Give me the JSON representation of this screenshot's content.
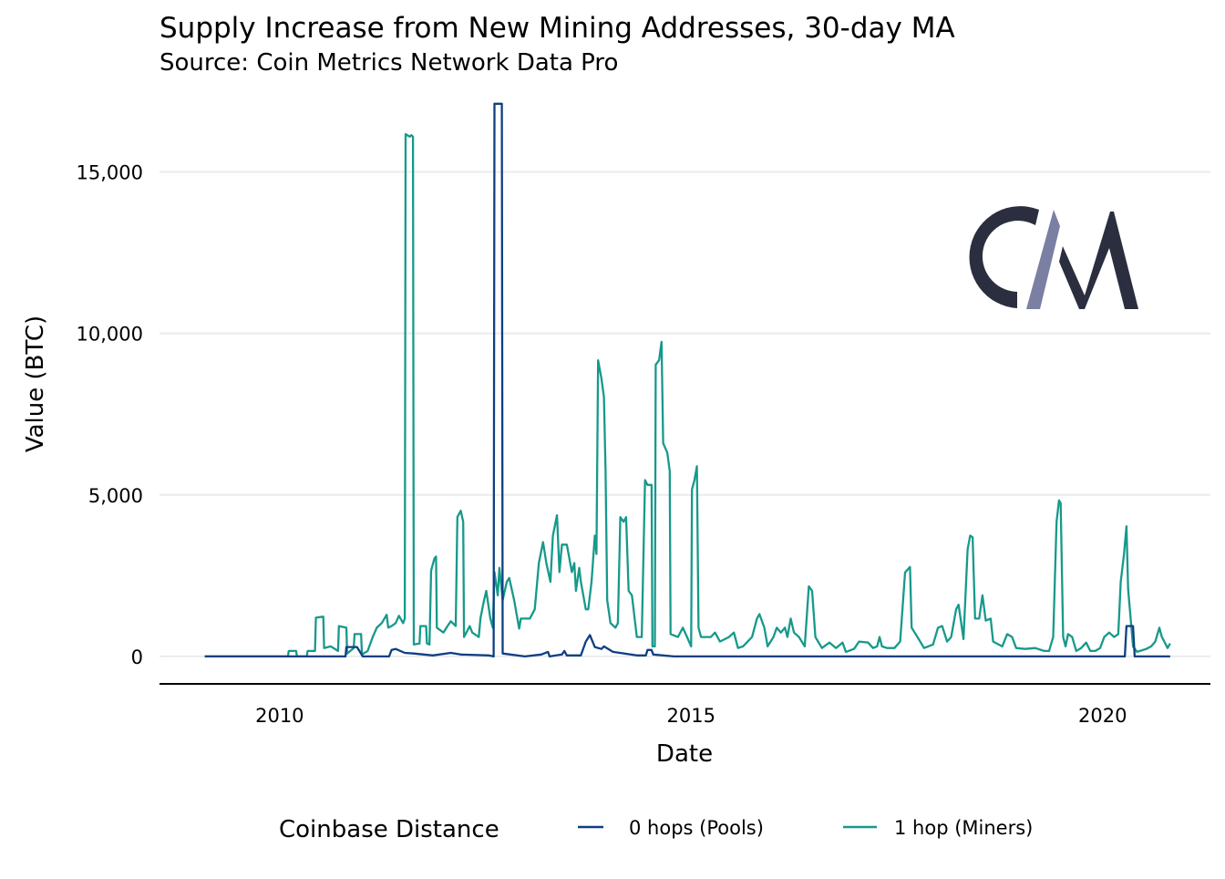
{
  "colors": {
    "pools": "#0e3f82",
    "miners": "#17998b",
    "grid": "#ebebeb",
    "logo_dark": "#2a2e3f",
    "logo_slash": "#7a7fa3"
  },
  "logo": {
    "text": "CM"
  },
  "chart_data": {
    "type": "line",
    "title": "Supply Increase from New Mining Addresses, 30-day MA",
    "subtitle": "Source: Coin Metrics Network Data Pro",
    "xlabel": "Date",
    "ylabel": "Value (BTC)",
    "xlim": [
      2008.54,
      2021.31
    ],
    "ylim": [
      -850,
      17500
    ],
    "x_ticks": [
      2010,
      2015,
      2020
    ],
    "x_tick_labels": [
      "2010",
      "2015",
      "2020"
    ],
    "y_ticks": [
      0,
      5000,
      10000,
      15000
    ],
    "y_tick_labels": [
      "0",
      "5,000",
      "10,000",
      "15,000"
    ],
    "grid": "horizontal",
    "legend": {
      "title": "Coinbase Distance",
      "position": "bottom",
      "entries": [
        "0 hops (Pools)",
        "1 hop (Miners)"
      ]
    },
    "series": [
      {
        "name": "0 hops (Pools)",
        "color_key": "pools",
        "points": [
          [
            2009.09,
            0
          ],
          [
            2010.8,
            0
          ],
          [
            2010.81,
            290
          ],
          [
            2010.94,
            290
          ],
          [
            2011.01,
            0
          ],
          [
            2011.33,
            0
          ],
          [
            2011.36,
            200
          ],
          [
            2011.41,
            230
          ],
          [
            2011.52,
            110
          ],
          [
            2011.63,
            90
          ],
          [
            2011.86,
            30
          ],
          [
            2012.08,
            110
          ],
          [
            2012.2,
            60
          ],
          [
            2012.54,
            30
          ],
          [
            2012.6,
            0
          ],
          [
            2012.61,
            17110
          ],
          [
            2012.7,
            17110
          ],
          [
            2012.71,
            90
          ],
          [
            2012.98,
            0
          ],
          [
            2013.18,
            60
          ],
          [
            2013.26,
            140
          ],
          [
            2013.28,
            0
          ],
          [
            2013.43,
            60
          ],
          [
            2013.46,
            170
          ],
          [
            2013.49,
            30
          ],
          [
            2013.66,
            30
          ],
          [
            2013.72,
            460
          ],
          [
            2013.77,
            660
          ],
          [
            2013.83,
            290
          ],
          [
            2013.91,
            230
          ],
          [
            2013.94,
            310
          ],
          [
            2014.05,
            140
          ],
          [
            2014.34,
            30
          ],
          [
            2014.45,
            30
          ],
          [
            2014.47,
            200
          ],
          [
            2014.52,
            200
          ],
          [
            2014.54,
            60
          ],
          [
            2014.79,
            0
          ],
          [
            2020.27,
            0
          ],
          [
            2020.29,
            940
          ],
          [
            2020.37,
            940
          ],
          [
            2020.39,
            0
          ],
          [
            2020.82,
            0
          ]
        ]
      },
      {
        "name": "1 hop (Miners)",
        "color_key": "miners",
        "points": [
          [
            2009.09,
            0
          ],
          [
            2010.1,
            0
          ],
          [
            2010.11,
            170
          ],
          [
            2010.2,
            170
          ],
          [
            2010.21,
            0
          ],
          [
            2010.33,
            0
          ],
          [
            2010.34,
            170
          ],
          [
            2010.43,
            170
          ],
          [
            2010.44,
            1200
          ],
          [
            2010.53,
            1230
          ],
          [
            2010.54,
            260
          ],
          [
            2010.62,
            310
          ],
          [
            2010.71,
            170
          ],
          [
            2010.72,
            940
          ],
          [
            2010.81,
            890
          ],
          [
            2010.82,
            90
          ],
          [
            2010.9,
            260
          ],
          [
            2010.91,
            690
          ],
          [
            2010.99,
            690
          ],
          [
            2011.0,
            60
          ],
          [
            2011.07,
            170
          ],
          [
            2011.13,
            600
          ],
          [
            2011.18,
            890
          ],
          [
            2011.24,
            1030
          ],
          [
            2011.3,
            1290
          ],
          [
            2011.32,
            890
          ],
          [
            2011.36,
            940
          ],
          [
            2011.41,
            1030
          ],
          [
            2011.45,
            1260
          ],
          [
            2011.5,
            1030
          ],
          [
            2011.52,
            1170
          ],
          [
            2011.53,
            16170
          ],
          [
            2011.58,
            16090
          ],
          [
            2011.6,
            16140
          ],
          [
            2011.62,
            16090
          ],
          [
            2011.63,
            370
          ],
          [
            2011.7,
            400
          ],
          [
            2011.71,
            940
          ],
          [
            2011.78,
            940
          ],
          [
            2011.79,
            400
          ],
          [
            2011.82,
            370
          ],
          [
            2011.84,
            2660
          ],
          [
            2011.88,
            3030
          ],
          [
            2011.9,
            3090
          ],
          [
            2011.91,
            890
          ],
          [
            2011.99,
            740
          ],
          [
            2012.04,
            940
          ],
          [
            2012.08,
            1090
          ],
          [
            2012.14,
            940
          ],
          [
            2012.16,
            4310
          ],
          [
            2012.2,
            4510
          ],
          [
            2012.23,
            4170
          ],
          [
            2012.24,
            600
          ],
          [
            2012.31,
            940
          ],
          [
            2012.34,
            740
          ],
          [
            2012.42,
            600
          ],
          [
            2012.44,
            1170
          ],
          [
            2012.48,
            1690
          ],
          [
            2012.51,
            2030
          ],
          [
            2012.56,
            1170
          ],
          [
            2012.59,
            890
          ],
          [
            2012.61,
            2610
          ],
          [
            2012.65,
            1890
          ],
          [
            2012.67,
            2740
          ],
          [
            2012.71,
            1740
          ],
          [
            2012.76,
            2310
          ],
          [
            2012.79,
            2430
          ],
          [
            2012.85,
            1740
          ],
          [
            2012.91,
            860
          ],
          [
            2012.93,
            1170
          ],
          [
            2013.04,
            1170
          ],
          [
            2013.1,
            1460
          ],
          [
            2013.15,
            2890
          ],
          [
            2013.2,
            3540
          ],
          [
            2013.24,
            2890
          ],
          [
            2013.29,
            2310
          ],
          [
            2013.32,
            3740
          ],
          [
            2013.37,
            4370
          ],
          [
            2013.4,
            2610
          ],
          [
            2013.43,
            3460
          ],
          [
            2013.49,
            3460
          ],
          [
            2013.55,
            2610
          ],
          [
            2013.58,
            2890
          ],
          [
            2013.6,
            2030
          ],
          [
            2013.64,
            2740
          ],
          [
            2013.66,
            2310
          ],
          [
            2013.72,
            1460
          ],
          [
            2013.75,
            1460
          ],
          [
            2013.79,
            2310
          ],
          [
            2013.83,
            3740
          ],
          [
            2013.85,
            3170
          ],
          [
            2013.87,
            9170
          ],
          [
            2013.91,
            8600
          ],
          [
            2013.94,
            8030
          ],
          [
            2013.96,
            5740
          ],
          [
            2013.98,
            1740
          ],
          [
            2014.02,
            1030
          ],
          [
            2014.08,
            890
          ],
          [
            2014.11,
            1030
          ],
          [
            2014.14,
            4310
          ],
          [
            2014.18,
            4170
          ],
          [
            2014.21,
            4310
          ],
          [
            2014.24,
            2030
          ],
          [
            2014.28,
            1890
          ],
          [
            2014.34,
            600
          ],
          [
            2014.4,
            600
          ],
          [
            2014.44,
            5460
          ],
          [
            2014.47,
            5310
          ],
          [
            2014.52,
            5310
          ],
          [
            2014.53,
            310
          ],
          [
            2014.56,
            310
          ],
          [
            2014.57,
            9030
          ],
          [
            2014.61,
            9170
          ],
          [
            2014.64,
            9740
          ],
          [
            2014.66,
            6600
          ],
          [
            2014.71,
            6310
          ],
          [
            2014.74,
            5740
          ],
          [
            2014.75,
            690
          ],
          [
            2014.84,
            600
          ],
          [
            2014.9,
            890
          ],
          [
            2014.95,
            600
          ],
          [
            2015.0,
            310
          ],
          [
            2015.01,
            5170
          ],
          [
            2015.04,
            5460
          ],
          [
            2015.07,
            5890
          ],
          [
            2015.09,
            890
          ],
          [
            2015.12,
            600
          ],
          [
            2015.24,
            600
          ],
          [
            2015.29,
            740
          ],
          [
            2015.35,
            460
          ],
          [
            2015.46,
            600
          ],
          [
            2015.52,
            740
          ],
          [
            2015.57,
            260
          ],
          [
            2015.63,
            310
          ],
          [
            2015.74,
            600
          ],
          [
            2015.8,
            1170
          ],
          [
            2015.83,
            1310
          ],
          [
            2015.89,
            890
          ],
          [
            2015.93,
            310
          ],
          [
            2016.0,
            600
          ],
          [
            2016.04,
            890
          ],
          [
            2016.09,
            740
          ],
          [
            2016.14,
            890
          ],
          [
            2016.17,
            600
          ],
          [
            2016.21,
            1170
          ],
          [
            2016.25,
            740
          ],
          [
            2016.31,
            600
          ],
          [
            2016.38,
            310
          ],
          [
            2016.43,
            2170
          ],
          [
            2016.47,
            2030
          ],
          [
            2016.51,
            600
          ],
          [
            2016.59,
            260
          ],
          [
            2016.68,
            430
          ],
          [
            2016.76,
            260
          ],
          [
            2016.84,
            430
          ],
          [
            2016.88,
            140
          ],
          [
            2016.98,
            230
          ],
          [
            2017.04,
            460
          ],
          [
            2017.15,
            430
          ],
          [
            2017.21,
            260
          ],
          [
            2017.26,
            310
          ],
          [
            2017.29,
            600
          ],
          [
            2017.32,
            310
          ],
          [
            2017.38,
            260
          ],
          [
            2017.47,
            260
          ],
          [
            2017.54,
            460
          ],
          [
            2017.6,
            2600
          ],
          [
            2017.66,
            2770
          ],
          [
            2017.68,
            890
          ],
          [
            2017.75,
            600
          ],
          [
            2017.83,
            260
          ],
          [
            2017.94,
            370
          ],
          [
            2018.0,
            890
          ],
          [
            2018.05,
            940
          ],
          [
            2018.11,
            460
          ],
          [
            2018.16,
            600
          ],
          [
            2018.22,
            1460
          ],
          [
            2018.25,
            1600
          ],
          [
            2018.31,
            540
          ],
          [
            2018.36,
            3310
          ],
          [
            2018.39,
            3740
          ],
          [
            2018.42,
            3690
          ],
          [
            2018.45,
            1170
          ],
          [
            2018.5,
            1170
          ],
          [
            2018.54,
            1890
          ],
          [
            2018.58,
            1110
          ],
          [
            2018.64,
            1170
          ],
          [
            2018.67,
            460
          ],
          [
            2018.78,
            310
          ],
          [
            2018.84,
            690
          ],
          [
            2018.9,
            600
          ],
          [
            2018.95,
            260
          ],
          [
            2019.06,
            230
          ],
          [
            2019.18,
            260
          ],
          [
            2019.29,
            170
          ],
          [
            2019.35,
            170
          ],
          [
            2019.4,
            600
          ],
          [
            2019.44,
            4170
          ],
          [
            2019.47,
            4830
          ],
          [
            2019.49,
            4740
          ],
          [
            2019.52,
            600
          ],
          [
            2019.55,
            310
          ],
          [
            2019.58,
            690
          ],
          [
            2019.63,
            600
          ],
          [
            2019.68,
            170
          ],
          [
            2019.74,
            260
          ],
          [
            2019.8,
            430
          ],
          [
            2019.85,
            170
          ],
          [
            2019.91,
            170
          ],
          [
            2019.97,
            260
          ],
          [
            2020.02,
            600
          ],
          [
            2020.08,
            740
          ],
          [
            2020.14,
            600
          ],
          [
            2020.19,
            690
          ],
          [
            2020.22,
            2310
          ],
          [
            2020.26,
            3170
          ],
          [
            2020.29,
            4030
          ],
          [
            2020.31,
            2090
          ],
          [
            2020.37,
            310
          ],
          [
            2020.42,
            140
          ],
          [
            2020.53,
            230
          ],
          [
            2020.59,
            310
          ],
          [
            2020.64,
            460
          ],
          [
            2020.69,
            890
          ],
          [
            2020.72,
            600
          ],
          [
            2020.75,
            460
          ],
          [
            2020.79,
            260
          ],
          [
            2020.82,
            400
          ]
        ]
      }
    ]
  }
}
